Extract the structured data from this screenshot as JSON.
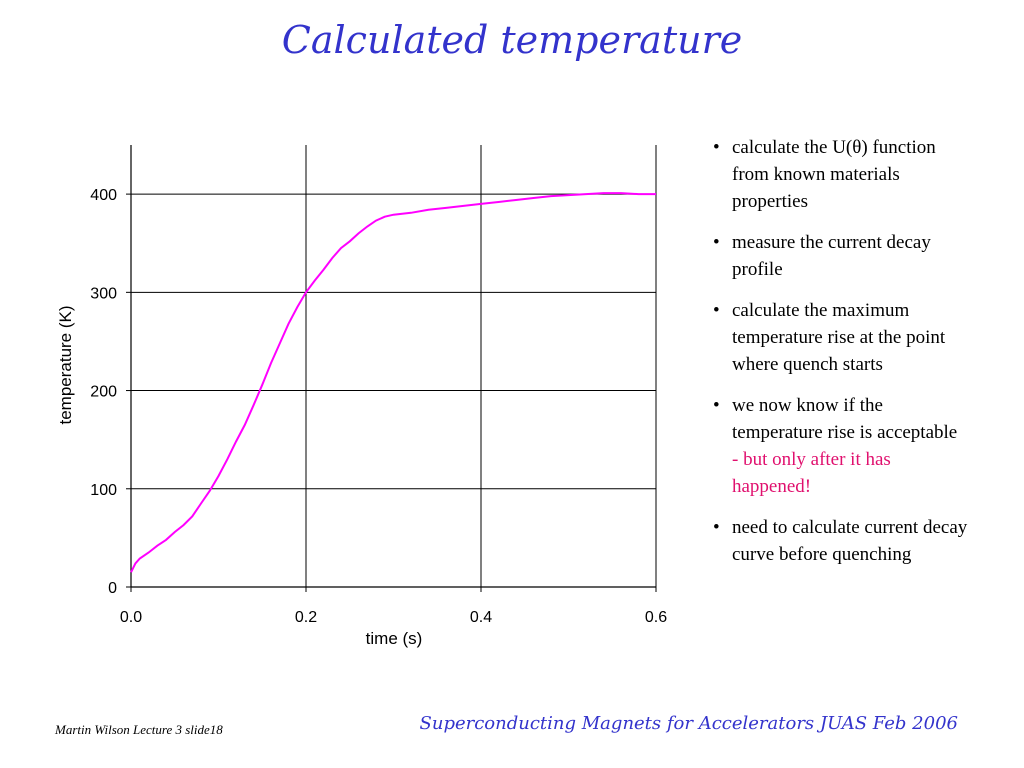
{
  "slide": {
    "title": "Calculated temperature"
  },
  "chart_data": {
    "type": "line",
    "xlabel": "time (s)",
    "ylabel": "temperature (K)",
    "xlim": [
      0,
      0.6
    ],
    "ylim": [
      0,
      450
    ],
    "xticks": [
      "0.0",
      "0.2",
      "0.4",
      "0.6"
    ],
    "yticks": [
      "0",
      "100",
      "200",
      "300",
      "400"
    ],
    "grid": true,
    "line_color": "#ff00ff",
    "series": [
      {
        "x": [
          0,
          0.005,
          0.01,
          0.02,
          0.03,
          0.04,
          0.05,
          0.06,
          0.07,
          0.08,
          0.09,
          0.1,
          0.11,
          0.12,
          0.13,
          0.14,
          0.15,
          0.16,
          0.17,
          0.18,
          0.19,
          0.2,
          0.21,
          0.22,
          0.23,
          0.24,
          0.25,
          0.26,
          0.27,
          0.28,
          0.29,
          0.3,
          0.32,
          0.34,
          0.36,
          0.38,
          0.4,
          0.42,
          0.44,
          0.46,
          0.48,
          0.5,
          0.52,
          0.54,
          0.56,
          0.58,
          0.6
        ],
        "y": [
          15,
          24,
          29,
          35,
          42,
          48,
          56,
          63,
          72,
          85,
          98,
          113,
          130,
          148,
          165,
          185,
          206,
          228,
          248,
          268,
          285,
          300,
          312,
          323,
          335,
          345,
          352,
          360,
          367,
          373,
          377,
          379,
          381,
          384,
          386,
          388,
          390,
          392,
          394,
          396,
          398,
          399,
          400,
          401,
          401,
          400,
          400
        ]
      }
    ]
  },
  "bullets": [
    {
      "text": "calculate the U(θ) function from known materials properties"
    },
    {
      "text": "measure the current decay profile"
    },
    {
      "text": "calculate the maximum temperature rise at the point where quench starts"
    },
    {
      "text": "we now know if the temperature rise is acceptable",
      "note": "- but only after it has happened!"
    },
    {
      "text": "need to calculate current decay curve before quenching"
    }
  ],
  "footer": {
    "left": "Martin Wilson Lecture 3 slide18",
    "right": "Superconducting Magnets for Accelerators JUAS Feb 2006"
  },
  "colors": {
    "title": "#3333cc",
    "note": "#e0106e",
    "curve": "#ff00ff"
  }
}
